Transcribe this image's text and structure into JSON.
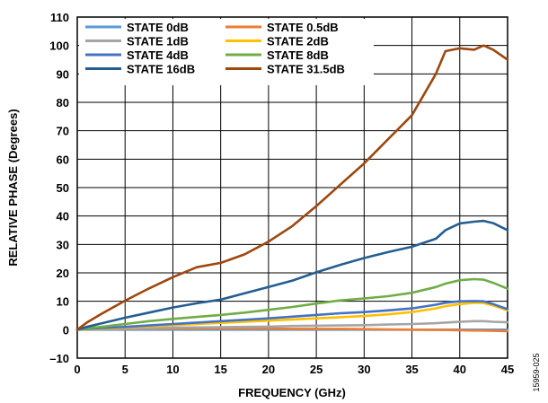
{
  "figure_id": "15959-025",
  "chart_data": {
    "type": "line",
    "title": "",
    "xlabel": "FREQUENCY (GHz)",
    "ylabel": "RELATIVE PHASE (Degrees)",
    "xlim": [
      0,
      45
    ],
    "ylim": [
      -10,
      110
    ],
    "xticks": [
      0,
      5,
      10,
      15,
      20,
      25,
      30,
      35,
      40,
      45
    ],
    "yticks": [
      -10,
      0,
      10,
      20,
      30,
      40,
      50,
      60,
      70,
      80,
      90,
      100,
      110
    ],
    "xtick_labels": [
      "0",
      "5",
      "10",
      "15",
      "20",
      "25",
      "30",
      "35",
      "40",
      "45"
    ],
    "ytick_labels": [
      "–10",
      "0",
      "10",
      "20",
      "30",
      "40",
      "50",
      "60",
      "70",
      "80",
      "90",
      "100",
      "110"
    ],
    "grid": true,
    "legend_position": "top-left",
    "x": [
      0,
      1,
      2.5,
      5,
      7.5,
      10,
      12.5,
      15,
      17.5,
      20,
      22.5,
      25,
      27.5,
      30,
      32.5,
      35,
      37.5,
      38.5,
      40,
      41.5,
      42.5,
      43.5,
      45
    ],
    "series": [
      {
        "name": "STATE 0dB",
        "color": "#5b9bd5",
        "values": [
          0,
          0,
          0,
          0,
          0,
          0,
          0,
          0,
          0,
          0,
          0,
          0,
          0,
          0,
          0,
          0,
          0,
          0,
          0,
          0,
          0,
          0,
          0
        ]
      },
      {
        "name": "STATE 0.5dB",
        "color": "#ed7d31",
        "values": [
          0,
          0.1,
          0.2,
          0.3,
          0.3,
          0.4,
          0.4,
          0.4,
          0.4,
          0.4,
          0.3,
          0.3,
          0.3,
          0.2,
          0.1,
          0,
          -0.1,
          -0.1,
          -0.2,
          -0.3,
          -0.3,
          -0.4,
          -0.5
        ]
      },
      {
        "name": "STATE 1dB",
        "color": "#a5a5a5",
        "values": [
          0,
          0.1,
          0.2,
          0.4,
          0.5,
          0.7,
          0.8,
          0.9,
          1.0,
          1.1,
          1.3,
          1.4,
          1.5,
          1.6,
          1.8,
          2.0,
          2.3,
          2.5,
          2.8,
          3.0,
          3.0,
          2.8,
          2.6
        ]
      },
      {
        "name": "STATE 2dB",
        "color": "#ffc000",
        "values": [
          0,
          0.2,
          0.4,
          0.8,
          1.2,
          1.6,
          2.0,
          2.4,
          2.8,
          3.2,
          3.6,
          4.0,
          4.4,
          4.8,
          5.4,
          6.2,
          7.5,
          8.3,
          9.0,
          9.5,
          9.4,
          8.5,
          6.8
        ]
      },
      {
        "name": "STATE 4dB",
        "color": "#4472c4",
        "values": [
          0,
          0.3,
          0.6,
          1.0,
          1.5,
          2.0,
          2.5,
          3.0,
          3.5,
          4.0,
          4.6,
          5.2,
          5.8,
          6.2,
          6.8,
          7.5,
          8.8,
          9.5,
          10.0,
          10.1,
          10.0,
          9.0,
          7.2
        ]
      },
      {
        "name": "STATE 8dB",
        "color": "#70ad47",
        "values": [
          0,
          0.5,
          1.0,
          2.0,
          3.0,
          3.8,
          4.5,
          5.2,
          6.0,
          7.0,
          8.0,
          9.2,
          10.3,
          11.0,
          11.8,
          13.0,
          15.0,
          16.2,
          17.4,
          17.8,
          17.6,
          16.5,
          14.4
        ]
      },
      {
        "name": "STATE 16dB",
        "color": "#255e91",
        "values": [
          0,
          1.0,
          2.2,
          4.2,
          6.0,
          7.8,
          9.3,
          10.6,
          12.8,
          15.0,
          17.3,
          20.2,
          22.8,
          25.2,
          27.3,
          29.2,
          32.0,
          35.0,
          37.4,
          38.0,
          38.3,
          37.5,
          35.0
        ]
      },
      {
        "name": "STATE 31.5dB",
        "color": "#9e480e",
        "values": [
          0,
          2.5,
          5.5,
          10.2,
          14.5,
          18.5,
          22.0,
          23.5,
          26.5,
          31.0,
          36.5,
          43.5,
          51.0,
          58.5,
          67.0,
          75.5,
          90.0,
          98.0,
          99.0,
          98.5,
          100.0,
          98.5,
          95.0
        ]
      }
    ]
  }
}
